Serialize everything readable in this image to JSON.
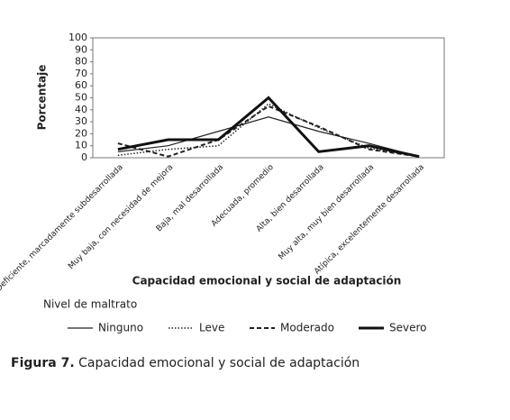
{
  "chart_data": {
    "type": "line",
    "y_label": "Porcentaje",
    "x_label": "Capacidad emocional y social de adaptación",
    "legend_title": "Nivel de maltrato",
    "caption_label": "Figura 7.",
    "caption": "Capacidad emocional y social de adaptación",
    "categories": [
      "Deficiente, marcadamente subdesarrollada",
      "Muy baja, con necesidad de mejora",
      "Baja, mal desarrollada",
      "Adecuada, promedio",
      "Alta, bien desarrollada",
      "Muy alta, muy bien desarrollada",
      "Atípica, excelentemente desarrollada"
    ],
    "ylim": [
      0,
      100
    ],
    "yticks": [
      0,
      10,
      20,
      30,
      40,
      50,
      60,
      70,
      80,
      90,
      100
    ],
    "series": [
      {
        "name": "Ninguno",
        "color": "#222222",
        "style": "solid",
        "width": 1.2,
        "values": [
          5,
          10,
          22,
          34,
          22,
          12,
          1
        ]
      },
      {
        "name": "Leve",
        "color": "#222222",
        "style": "dotted",
        "width": 1.5,
        "values": [
          2,
          7,
          10,
          45,
          25,
          8,
          1
        ]
      },
      {
        "name": "Moderado",
        "color": "#222222",
        "style": "dashed",
        "width": 2,
        "values": [
          12,
          1,
          15,
          43,
          26,
          7,
          1
        ]
      },
      {
        "name": "Severo",
        "color": "#111111",
        "style": "solid",
        "width": 3,
        "values": [
          7,
          15,
          15,
          50,
          5,
          10,
          1
        ]
      }
    ]
  }
}
